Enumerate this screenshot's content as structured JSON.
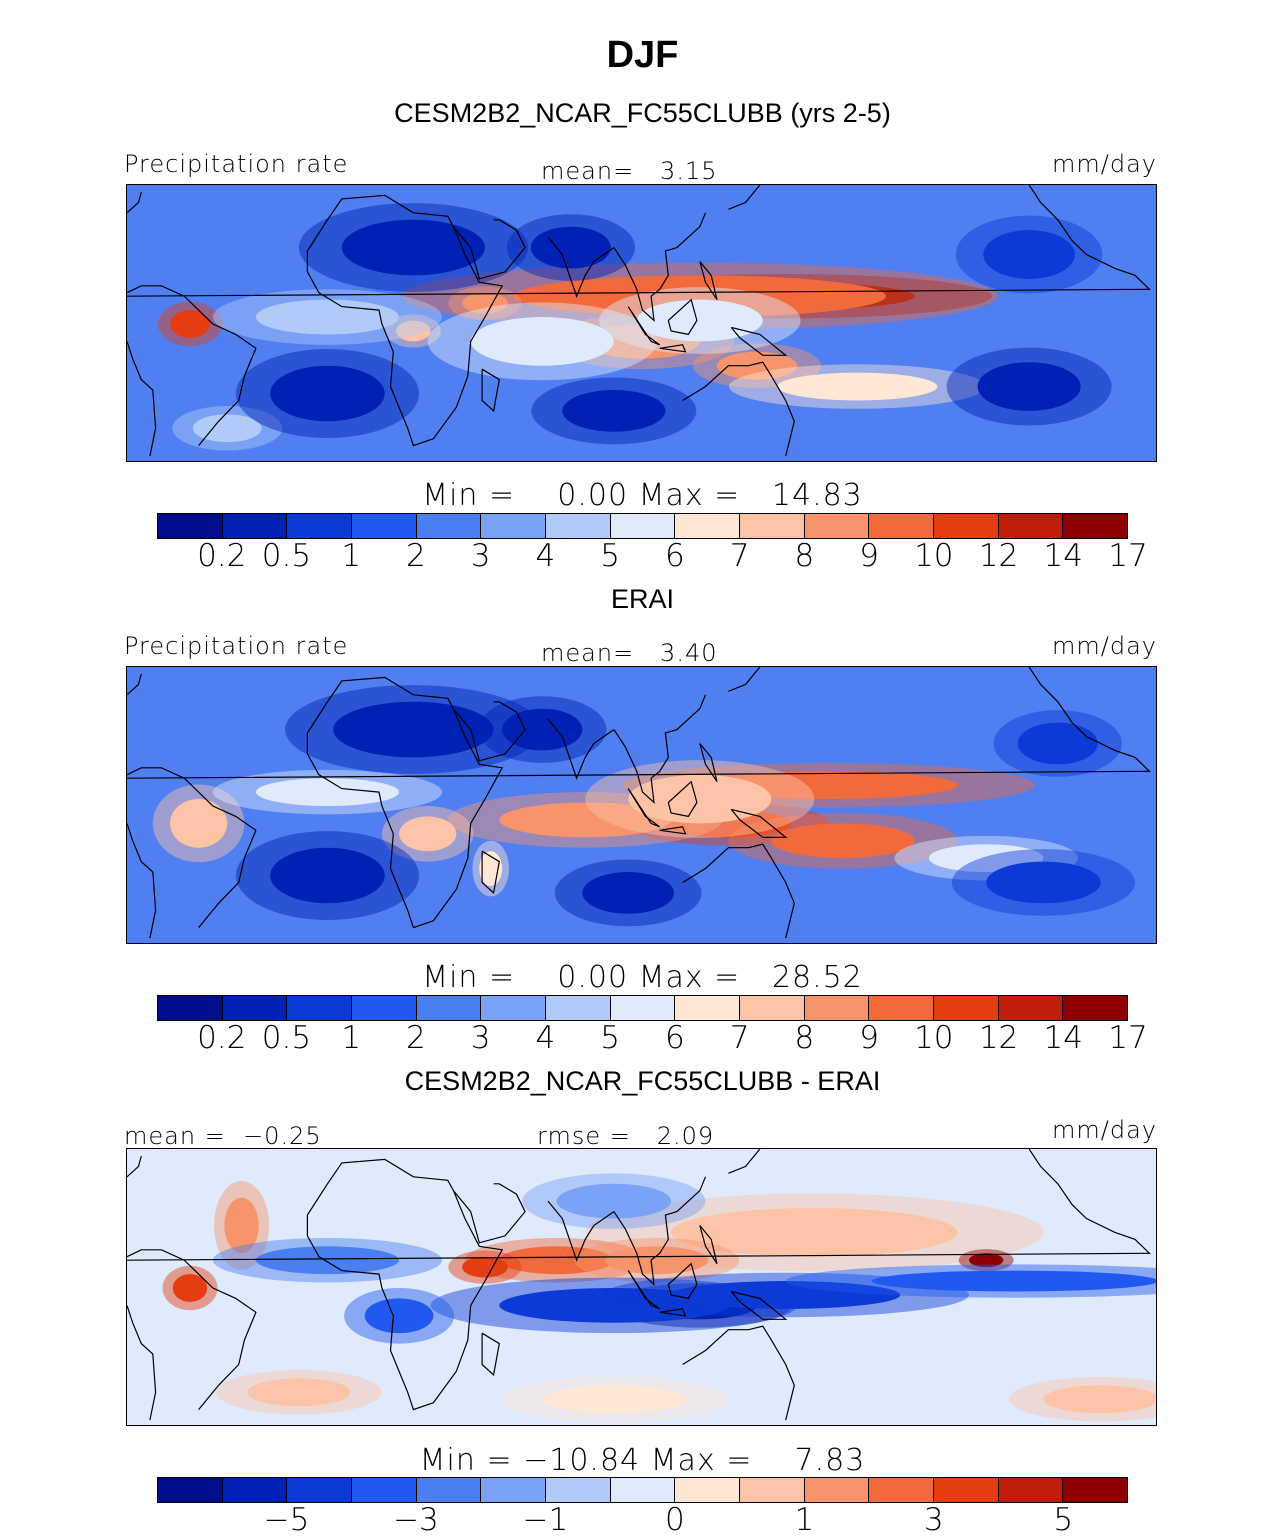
{
  "title": "DJF",
  "palette": {
    "colors": [
      "#000e8c",
      "#0021b4",
      "#0b3ad6",
      "#1f59f0",
      "#4a7ff0",
      "#7aa2f5",
      "#b1cbf8",
      "#dfeafc",
      "#ffe7d6",
      "#fcc3a6",
      "#f8946c",
      "#f26a3c",
      "#e53d12",
      "#c11e0a",
      "#8e0000"
    ],
    "outline": "#000000"
  },
  "panels": [
    {
      "title": "CESM2B2_NCAR_FC55CLUBB (yrs 2-5)",
      "left_label": "Precipitation rate",
      "center_label": "mean=   3.15",
      "units": "mm/day",
      "minmax": "Min =    0.00 Max =   14.83",
      "ticks": [
        "0.2",
        "0.5",
        "1",
        "2",
        "3",
        "4",
        "5",
        "6",
        "7",
        "8",
        "9",
        "10",
        "12",
        "14",
        "17"
      ]
    },
    {
      "title": "ERAI",
      "left_label": "Precipitation rate",
      "center_label": "mean=   3.40",
      "units": "mm/day",
      "minmax": "Min =    0.00 Max =   28.52",
      "ticks": [
        "0.2",
        "0.5",
        "1",
        "2",
        "3",
        "4",
        "5",
        "6",
        "7",
        "8",
        "9",
        "10",
        "12",
        "14",
        "17"
      ]
    },
    {
      "title": "CESM2B2_NCAR_FC55CLUBB - ERAI",
      "left_label": "mean =  −0.25",
      "center_label": "rmse =   2.09",
      "units": "mm/day",
      "minmax": "Min = −10.84 Max =    7.83",
      "ticks": [
        "−5",
        "−3",
        "−1",
        "0",
        "1",
        "3",
        "5"
      ]
    }
  ],
  "chart_data": [
    {
      "type": "heatmap",
      "title": "CESM2B2_NCAR_FC55CLUBB (yrs 2-5)",
      "variable": "Precipitation rate",
      "units": "mm/day",
      "mean": 3.15,
      "min": 0.0,
      "max": 14.83,
      "contour_levels": [
        0.2,
        0.5,
        1,
        2,
        3,
        4,
        5,
        6,
        7,
        8,
        9,
        10,
        12,
        14,
        17
      ],
      "features": [
        {
          "level": 14,
          "lon": 150,
          "lat": 8,
          "rx": 45,
          "ry": 4
        },
        {
          "level": 11,
          "lon": 120,
          "lat": 8,
          "rx": 65,
          "ry": 6
        },
        {
          "level": 10,
          "lon": 100,
          "lat": -5,
          "rx": 20,
          "ry": 5
        },
        {
          "level": 10,
          "lon": 45,
          "lat": 6,
          "rx": 8,
          "ry": 3
        },
        {
          "level": 12,
          "lon": -58,
          "lat": 0,
          "rx": 7,
          "ry": 4
        },
        {
          "level": 9,
          "lon": 20,
          "lat": -2,
          "rx": 6,
          "ry": 3
        },
        {
          "level": 10,
          "lon": 140,
          "lat": -12,
          "rx": 14,
          "ry": 4
        },
        {
          "level": 8,
          "lon": 175,
          "lat": -18,
          "rx": 28,
          "ry": 4
        },
        {
          "level": 7,
          "lon": 65,
          "lat": -5,
          "rx": 25,
          "ry": 7
        },
        {
          "level": 7,
          "lon": 120,
          "lat": 1,
          "rx": 22,
          "ry": 6
        },
        {
          "level": 6,
          "lon": -10,
          "lat": 2,
          "rx": 25,
          "ry": 5
        },
        {
          "level": 6,
          "lon": -45,
          "lat": -30,
          "rx": 12,
          "ry": 4
        },
        {
          "level": 1,
          "lon": 20,
          "lat": 22,
          "rx": 25,
          "ry": 8
        },
        {
          "level": 1,
          "lon": -10,
          "lat": -20,
          "rx": 20,
          "ry": 8
        },
        {
          "level": 1,
          "lon": 75,
          "lat": 22,
          "rx": 14,
          "ry": 6
        },
        {
          "level": 1,
          "lon": 90,
          "lat": -25,
          "rx": 18,
          "ry": 6
        },
        {
          "level": 1,
          "lon": -125,
          "lat": -18,
          "rx": 18,
          "ry": 7
        },
        {
          "level": 2,
          "lon": -125,
          "lat": 20,
          "rx": 16,
          "ry": 7
        }
      ]
    },
    {
      "type": "heatmap",
      "title": "ERAI",
      "variable": "Precipitation rate",
      "units": "mm/day",
      "mean": 3.4,
      "min": 0.0,
      "max": 28.52,
      "contour_levels": [
        0.2,
        0.5,
        1,
        2,
        3,
        4,
        5,
        6,
        7,
        8,
        9,
        10,
        12,
        14,
        17
      ],
      "features": [
        {
          "level": 12,
          "lon": 130,
          "lat": -5,
          "rx": 22,
          "ry": 4
        },
        {
          "level": 11,
          "lon": 165,
          "lat": 6,
          "rx": 45,
          "ry": 4
        },
        {
          "level": 11,
          "lon": 170,
          "lat": -10,
          "rx": 25,
          "ry": 5
        },
        {
          "level": 10,
          "lon": 80,
          "lat": -4,
          "rx": 30,
          "ry": 5
        },
        {
          "level": 9,
          "lon": 120,
          "lat": 2,
          "rx": 25,
          "ry": 7
        },
        {
          "level": 9,
          "lon": -55,
          "lat": -5,
          "rx": 10,
          "ry": 7
        },
        {
          "level": 9,
          "lon": 25,
          "lat": -8,
          "rx": 10,
          "ry": 5
        },
        {
          "level": 8,
          "lon": 47,
          "lat": -18,
          "rx": 4,
          "ry": 5
        },
        {
          "level": 7,
          "lon": -10,
          "lat": 4,
          "rx": 25,
          "ry": 4
        },
        {
          "level": 7,
          "lon": -140,
          "lat": -15,
          "rx": 20,
          "ry": 4
        },
        {
          "level": 1,
          "lon": 20,
          "lat": 22,
          "rx": 28,
          "ry": 8
        },
        {
          "level": 1,
          "lon": 65,
          "lat": 22,
          "rx": 14,
          "ry": 6
        },
        {
          "level": 1,
          "lon": -10,
          "lat": -20,
          "rx": 20,
          "ry": 8
        },
        {
          "level": 1,
          "lon": 95,
          "lat": -25,
          "rx": 16,
          "ry": 6
        },
        {
          "level": 2,
          "lon": -120,
          "lat": -22,
          "rx": 20,
          "ry": 6
        },
        {
          "level": 2,
          "lon": -115,
          "lat": 18,
          "rx": 14,
          "ry": 6
        }
      ]
    },
    {
      "type": "heatmap",
      "title": "CESM2B2_NCAR_FC55CLUBB - ERAI",
      "units": "mm/day",
      "mean": -0.25,
      "rmse": 2.09,
      "min": -10.84,
      "max": 7.83,
      "contour_levels": [
        -6,
        -5,
        -4,
        -3,
        -2,
        -1,
        -0.5,
        0,
        0.5,
        1,
        2,
        3,
        4,
        5,
        6
      ],
      "features": [
        {
          "level": 9,
          "lon": 160,
          "lat": 16,
          "rx": 50,
          "ry": 7
        },
        {
          "level": 14,
          "lon": -140,
          "lat": 8,
          "rx": 6,
          "ry": 2
        },
        {
          "level": 11,
          "lon": 70,
          "lat": 8,
          "rx": 20,
          "ry": 4
        },
        {
          "level": 12,
          "lon": 45,
          "lat": 6,
          "rx": 8,
          "ry": 3
        },
        {
          "level": 10,
          "lon": 105,
          "lat": 8,
          "rx": 18,
          "ry": 4
        },
        {
          "level": 12,
          "lon": -58,
          "lat": 0,
          "rx": 6,
          "ry": 4
        },
        {
          "level": 10,
          "lon": -40,
          "lat": 18,
          "rx": 6,
          "ry": 8
        },
        {
          "level": 9,
          "lon": -20,
          "lat": -30,
          "rx": 18,
          "ry": 4
        },
        {
          "level": 9,
          "lon": -100,
          "lat": -32,
          "rx": 20,
          "ry": 4
        },
        {
          "level": 8,
          "lon": 90,
          "lat": -32,
          "rx": 25,
          "ry": 4
        },
        {
          "level": 0,
          "lon": 120,
          "lat": -5,
          "rx": 20,
          "ry": 4
        },
        {
          "level": 2,
          "lon": 90,
          "lat": -5,
          "rx": 40,
          "ry": 5
        },
        {
          "level": 2,
          "lon": 150,
          "lat": -2,
          "rx": 40,
          "ry": 4
        },
        {
          "level": 3,
          "lon": -130,
          "lat": 2,
          "rx": 50,
          "ry": 3
        },
        {
          "level": 3,
          "lon": 15,
          "lat": -8,
          "rx": 12,
          "ry": 5
        },
        {
          "level": 4,
          "lon": -10,
          "lat": 8,
          "rx": 25,
          "ry": 4
        },
        {
          "level": 5,
          "lon": 90,
          "lat": 25,
          "rx": 20,
          "ry": 5
        }
      ]
    }
  ]
}
